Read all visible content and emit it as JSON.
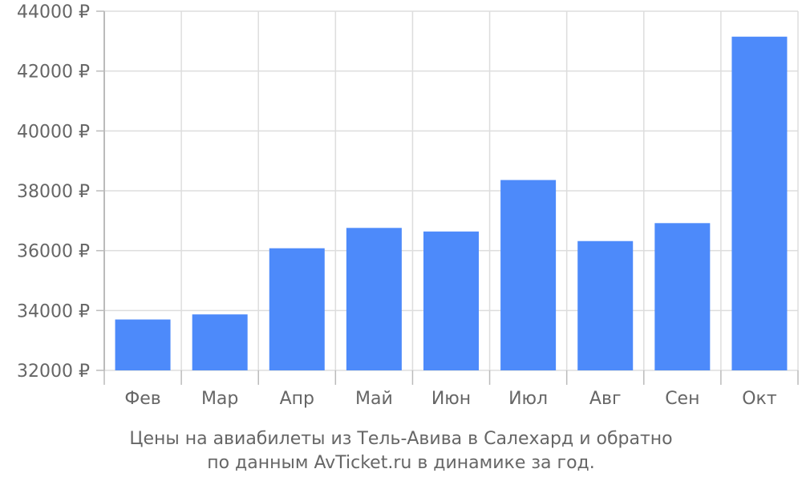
{
  "chart_data": {
    "type": "bar",
    "categories": [
      "Фев",
      "Мар",
      "Апр",
      "Май",
      "Июн",
      "Июл",
      "Авг",
      "Сен",
      "Окт"
    ],
    "values": [
      33700,
      33870,
      36080,
      36760,
      36640,
      38360,
      36320,
      36920,
      43150
    ],
    "ylim": [
      32000,
      44000
    ],
    "yticks": [
      32000,
      34000,
      36000,
      38000,
      40000,
      42000,
      44000
    ],
    "ytick_labels": [
      "32000 ₽",
      "34000 ₽",
      "36000 ₽",
      "38000 ₽",
      "40000 ₽",
      "42000 ₽",
      "44000 ₽"
    ],
    "grid": true,
    "colors": {
      "bar": "#4d8afa",
      "grid": "#dddddd",
      "axis": "#bbbbbb",
      "text": "#666666"
    }
  },
  "caption": {
    "line1": "Цены на авиабилеты из Тель-Авива в Салехард и обратно",
    "line2": "по данным AvTicket.ru в динамике за год."
  }
}
